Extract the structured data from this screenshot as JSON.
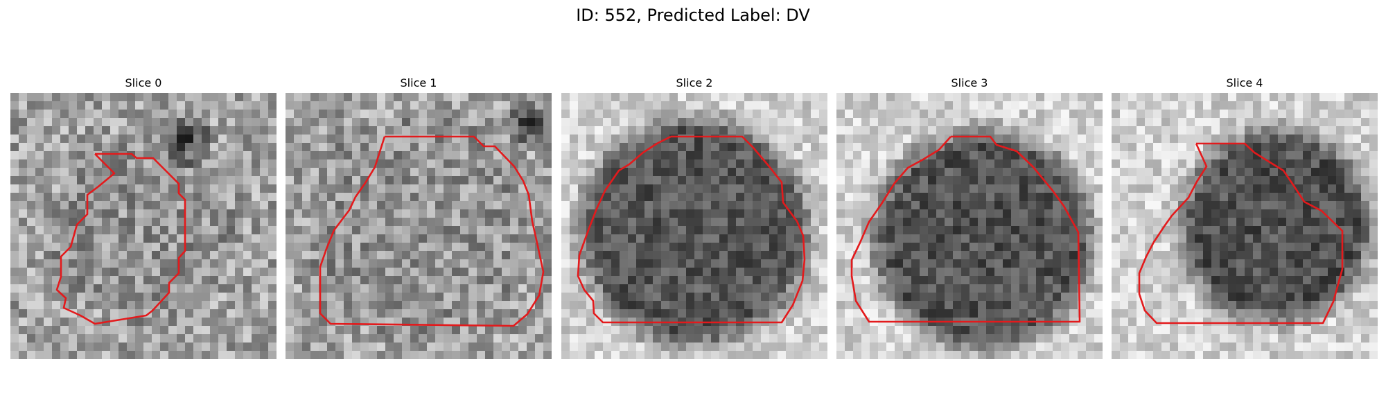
{
  "figure": {
    "title": "ID: 552, Predicted Label: DV"
  },
  "slices": [
    {
      "title": "Slice 0",
      "tone": "light",
      "contour_color": "#e31a1c"
    },
    {
      "title": "Slice 1",
      "tone": "light",
      "contour_color": "#e31a1c"
    },
    {
      "title": "Slice 2",
      "tone": "dark",
      "contour_color": "#e31a1c"
    },
    {
      "title": "Slice 3",
      "tone": "dark",
      "contour_color": "#e31a1c"
    },
    {
      "title": "Slice 4",
      "tone": "dark",
      "contour_color": "#e31a1c"
    }
  ]
}
